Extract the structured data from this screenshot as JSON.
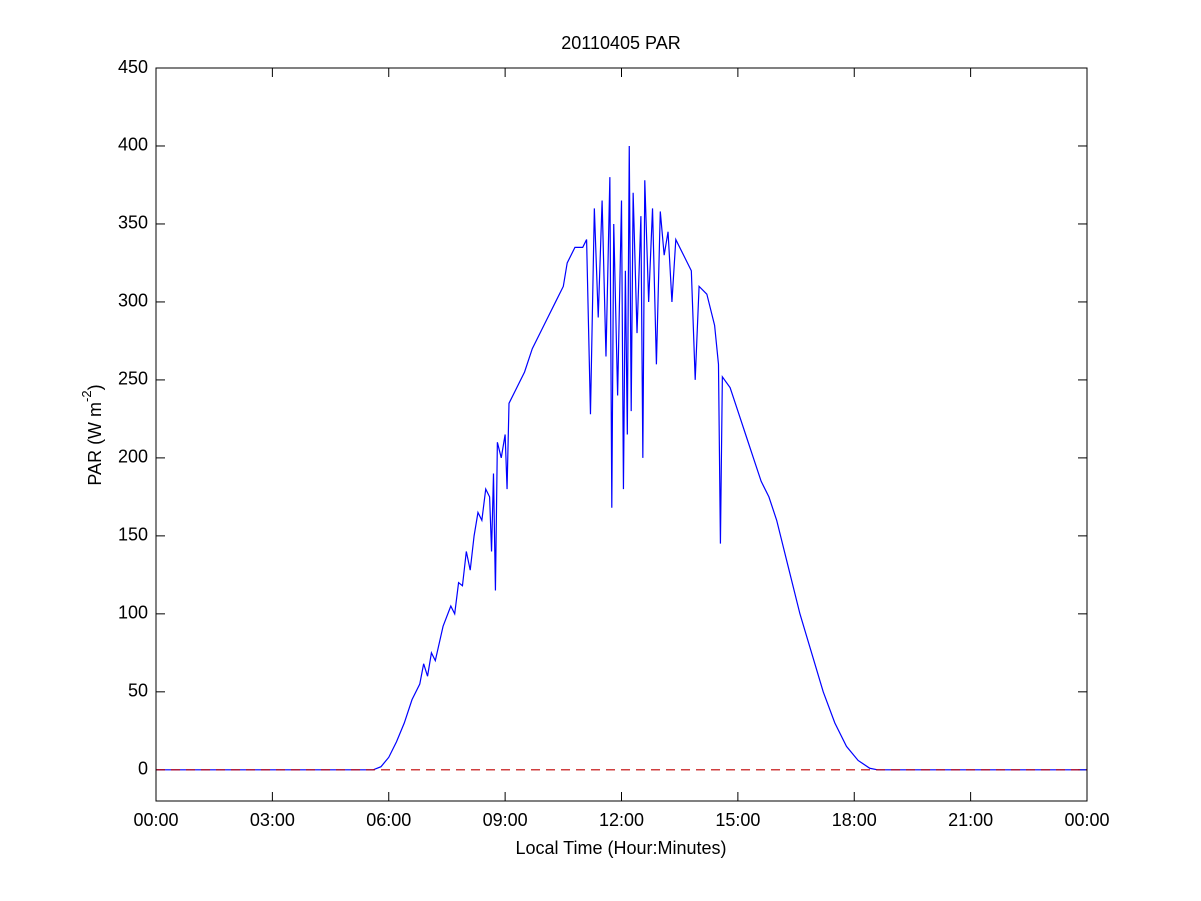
{
  "chart_data": {
    "type": "line",
    "title": "20110405 PAR",
    "x_label": "Local Time (Hour:Minutes)",
    "y_label": {
      "text": "PAR (W m",
      "superscript": "-2",
      "suffix": ")"
    },
    "xlim": [
      0,
      24
    ],
    "xticks": [
      {
        "value": 0,
        "label": "00:00"
      },
      {
        "value": 3,
        "label": "03:00"
      },
      {
        "value": 6,
        "label": "06:00"
      },
      {
        "value": 9,
        "label": "09:00"
      },
      {
        "value": 12,
        "label": "12:00"
      },
      {
        "value": 15,
        "label": "15:00"
      },
      {
        "value": 18,
        "label": "18:00"
      },
      {
        "value": 21,
        "label": "21:00"
      },
      {
        "value": 24,
        "label": "00:00"
      }
    ],
    "ylim": [
      -20,
      450
    ],
    "yticks": [
      0,
      50,
      100,
      150,
      200,
      250,
      300,
      350,
      400,
      450
    ],
    "grid": false,
    "reference_line": {
      "value": 0,
      "color": "#c00000",
      "style": "dashed"
    },
    "x": [
      0,
      5.6,
      5.8,
      6.0,
      6.2,
      6.4,
      6.6,
      6.8,
      6.9,
      7.0,
      7.1,
      7.2,
      7.4,
      7.6,
      7.7,
      7.8,
      7.9,
      8.0,
      8.1,
      8.2,
      8.3,
      8.4,
      8.5,
      8.6,
      8.65,
      8.7,
      8.75,
      8.8,
      8.9,
      9.0,
      9.05,
      9.1,
      9.3,
      9.5,
      9.7,
      9.9,
      10.1,
      10.3,
      10.5,
      10.6,
      10.8,
      11.0,
      11.1,
      11.2,
      11.3,
      11.4,
      11.5,
      11.6,
      11.7,
      11.75,
      11.8,
      11.9,
      12.0,
      12.05,
      12.1,
      12.15,
      12.2,
      12.25,
      12.3,
      12.4,
      12.5,
      12.55,
      12.6,
      12.7,
      12.8,
      12.9,
      13.0,
      13.1,
      13.2,
      13.3,
      13.4,
      13.6,
      13.8,
      13.9,
      14.0,
      14.2,
      14.4,
      14.5,
      14.55,
      14.6,
      14.8,
      15.0,
      15.2,
      15.4,
      15.6,
      15.8,
      16.0,
      16.3,
      16.6,
      16.9,
      17.2,
      17.5,
      17.8,
      18.1,
      18.4,
      18.6,
      24
    ],
    "series": [
      {
        "color": "#0000ff",
        "values": [
          0,
          0,
          2,
          8,
          18,
          30,
          45,
          55,
          68,
          60,
          75,
          70,
          92,
          105,
          100,
          120,
          118,
          140,
          128,
          150,
          165,
          160,
          180,
          175,
          140,
          190,
          115,
          210,
          200,
          215,
          180,
          235,
          245,
          255,
          270,
          280,
          290,
          300,
          310,
          325,
          335,
          335,
          340,
          228,
          360,
          290,
          365,
          265,
          380,
          168,
          350,
          240,
          365,
          180,
          320,
          215,
          400,
          230,
          370,
          280,
          355,
          200,
          378,
          300,
          360,
          260,
          358,
          330,
          345,
          300,
          340,
          330,
          320,
          250,
          310,
          305,
          285,
          260,
          145,
          252,
          245,
          230,
          215,
          200,
          185,
          175,
          160,
          130,
          100,
          75,
          50,
          30,
          15,
          6,
          1,
          0,
          0
        ]
      }
    ]
  }
}
